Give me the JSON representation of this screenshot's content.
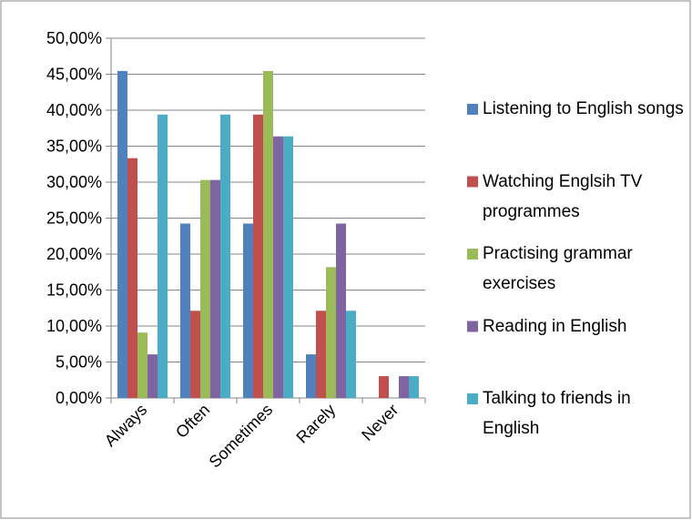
{
  "chart_data": {
    "type": "bar",
    "categories": [
      "Always",
      "Often",
      "Sometimes",
      "Rarely",
      "Never"
    ],
    "series": [
      {
        "name": "Listening to English songs",
        "color": "#4f81bd",
        "values": [
          45.45,
          24.24,
          24.24,
          6.06,
          0
        ]
      },
      {
        "name": "Watching Englsih TV programmes",
        "color": "#c0504d",
        "values": [
          33.33,
          12.12,
          39.39,
          12.12,
          3.03
        ]
      },
      {
        "name": "Practising grammar exercises",
        "color": "#9bbb59",
        "values": [
          9.09,
          30.3,
          45.45,
          18.18,
          0
        ]
      },
      {
        "name": "Reading in English",
        "color": "#8064a2",
        "values": [
          6.06,
          30.3,
          36.36,
          24.24,
          3.03
        ]
      },
      {
        "name": "Talking to friends in English",
        "color": "#4bacc6",
        "values": [
          39.39,
          39.39,
          36.36,
          12.12,
          3.03
        ]
      }
    ],
    "ylim": [
      0,
      50
    ],
    "yticks": [
      {
        "value": 0,
        "label": "0,00%"
      },
      {
        "value": 5,
        "label": "5,00%"
      },
      {
        "value": 10,
        "label": "10,00%"
      },
      {
        "value": 15,
        "label": "15,00%"
      },
      {
        "value": 20,
        "label": "20,00%"
      },
      {
        "value": 25,
        "label": "25,00%"
      },
      {
        "value": 30,
        "label": "30,00%"
      },
      {
        "value": 35,
        "label": "35,00%"
      },
      {
        "value": 40,
        "label": "40,00%"
      },
      {
        "value": 45,
        "label": "45,00%"
      },
      {
        "value": 50,
        "label": "50,00%"
      }
    ],
    "grid": true,
    "legend": "right"
  }
}
